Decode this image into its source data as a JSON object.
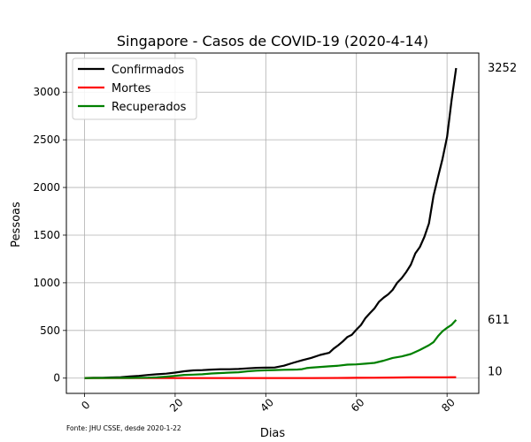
{
  "chart_data": {
    "type": "line",
    "title": "Singapore - Casos de COVID-19 (2020-4-14)",
    "xlabel": "Dias",
    "ylabel": "Pessoas",
    "footnote": "Fonte: JHU CSSE, desde 2020-1-22",
    "xlim": [
      -4,
      87
    ],
    "ylim": [
      -160,
      3410
    ],
    "x_ticks": [
      0,
      20,
      40,
      60,
      80
    ],
    "y_ticks": [
      0,
      500,
      1000,
      1500,
      2000,
      2500,
      3000
    ],
    "grid": true,
    "legend_position": "top-left",
    "series": [
      {
        "name": "Confirmados",
        "color": "#000000",
        "final_label": "3252",
        "points": [
          [
            0,
            1
          ],
          [
            2,
            3
          ],
          [
            4,
            4
          ],
          [
            6,
            7
          ],
          [
            8,
            10
          ],
          [
            10,
            18
          ],
          [
            12,
            24
          ],
          [
            14,
            33
          ],
          [
            16,
            40
          ],
          [
            18,
            47
          ],
          [
            20,
            58
          ],
          [
            22,
            72
          ],
          [
            24,
            81
          ],
          [
            26,
            84
          ],
          [
            28,
            89
          ],
          [
            30,
            93
          ],
          [
            32,
            93
          ],
          [
            34,
            96
          ],
          [
            36,
            102
          ],
          [
            38,
            108
          ],
          [
            40,
            110
          ],
          [
            42,
            112
          ],
          [
            44,
            130
          ],
          [
            46,
            160
          ],
          [
            48,
            187
          ],
          [
            50,
            212
          ],
          [
            52,
            243
          ],
          [
            54,
            266
          ],
          [
            55,
            310
          ],
          [
            56,
            345
          ],
          [
            57,
            385
          ],
          [
            58,
            432
          ],
          [
            59,
            455
          ],
          [
            60,
            509
          ],
          [
            61,
            558
          ],
          [
            62,
            631
          ],
          [
            63,
            683
          ],
          [
            64,
            732
          ],
          [
            65,
            802
          ],
          [
            66,
            844
          ],
          [
            67,
            879
          ],
          [
            68,
            926
          ],
          [
            69,
            1000
          ],
          [
            70,
            1049
          ],
          [
            71,
            1114
          ],
          [
            72,
            1189
          ],
          [
            73,
            1309
          ],
          [
            74,
            1375
          ],
          [
            75,
            1481
          ],
          [
            76,
            1623
          ],
          [
            77,
            1910
          ],
          [
            78,
            2108
          ],
          [
            79,
            2299
          ],
          [
            80,
            2532
          ],
          [
            81,
            2918
          ],
          [
            82,
            3252
          ]
        ]
      },
      {
        "name": "Mortes",
        "color": "#ff0000",
        "final_label": "10",
        "points": [
          [
            0,
            0
          ],
          [
            50,
            0
          ],
          [
            58,
            2
          ],
          [
            60,
            3
          ],
          [
            64,
            4
          ],
          [
            68,
            6
          ],
          [
            72,
            8
          ],
          [
            76,
            8
          ],
          [
            80,
            9
          ],
          [
            82,
            10
          ]
        ]
      },
      {
        "name": "Recuperados",
        "color": "#008000",
        "final_label": "611",
        "points": [
          [
            0,
            0
          ],
          [
            10,
            2
          ],
          [
            14,
            5
          ],
          [
            16,
            9
          ],
          [
            18,
            15
          ],
          [
            20,
            24
          ],
          [
            22,
            34
          ],
          [
            24,
            37
          ],
          [
            26,
            40
          ],
          [
            28,
            49
          ],
          [
            30,
            53
          ],
          [
            32,
            58
          ],
          [
            34,
            62
          ],
          [
            36,
            72
          ],
          [
            38,
            78
          ],
          [
            40,
            82
          ],
          [
            42,
            85
          ],
          [
            44,
            88
          ],
          [
            46,
            89
          ],
          [
            47,
            90
          ],
          [
            48,
            94
          ],
          [
            49,
            105
          ],
          [
            50,
            110
          ],
          [
            52,
            117
          ],
          [
            54,
            124
          ],
          [
            56,
            130
          ],
          [
            58,
            141
          ],
          [
            60,
            144
          ],
          [
            62,
            152
          ],
          [
            64,
            160
          ],
          [
            66,
            183
          ],
          [
            68,
            212
          ],
          [
            70,
            228
          ],
          [
            72,
            253
          ],
          [
            74,
            295
          ],
          [
            76,
            345
          ],
          [
            77,
            377
          ],
          [
            78,
            440
          ],
          [
            79,
            492
          ],
          [
            80,
            528
          ],
          [
            81,
            560
          ],
          [
            82,
            611
          ]
        ]
      }
    ]
  }
}
